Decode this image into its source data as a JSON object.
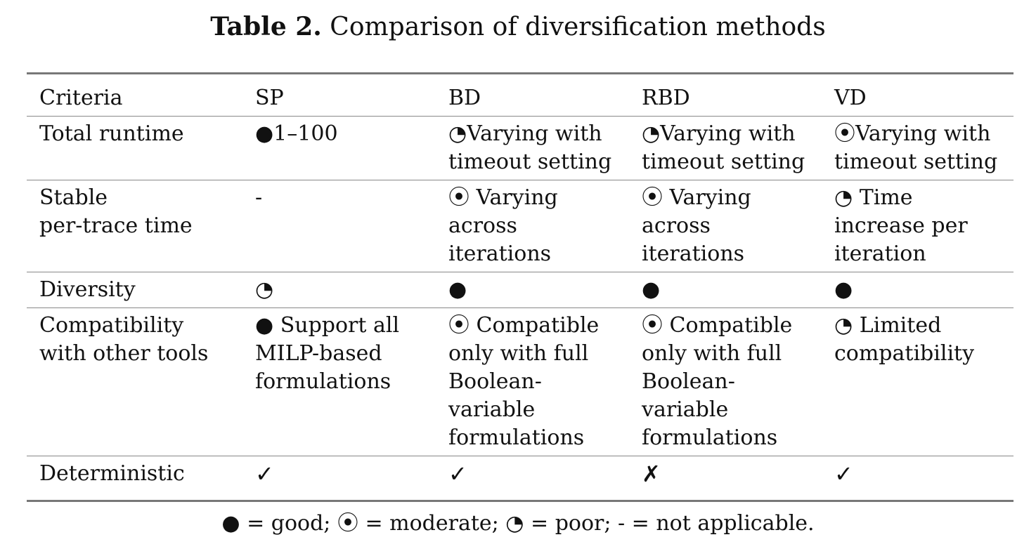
{
  "caption": {
    "label": "Table 2.",
    "text": " Comparison of diversification methods"
  },
  "header": {
    "criteria": "Criteria",
    "sp": "SP",
    "bd": "BD",
    "rbd": "RBD",
    "vd": "VD"
  },
  "rows": [
    {
      "criterion": "Total runtime",
      "sp": "●1–100",
      "bd": "◔Varying with\ntimeout setting",
      "rbd": "◔Varying with\ntimeout setting",
      "vd": "⦿Varying with\ntimeout setting"
    },
    {
      "criterion": "Stable\nper-trace time",
      "sp": "-",
      "bd": "⦿ Varying\nacross\niterations",
      "rbd": "⦿ Varying\nacross\niterations",
      "vd": "◔ Time\nincrease per\niteration"
    },
    {
      "criterion": "Diversity",
      "sp": "◔",
      "bd": "●",
      "rbd": "●",
      "vd": "●"
    },
    {
      "criterion": "Compatibility\nwith other tools",
      "sp": "● Support all\nMILP-based\nformulations",
      "bd": "⦿ Compatible\nonly with full\nBoolean-\nvariable\nformulations",
      "rbd": "⦿ Compatible\nonly with full\nBoolean-\nvariable\nformulations",
      "vd": "◔ Limited\ncompatibility"
    },
    {
      "criterion": "Deterministic",
      "sp": "✓",
      "bd": "✓",
      "rbd": "✗",
      "vd": "✓"
    }
  ],
  "legend": "● = good; ⦿ = moderate; ◔ = poor; - = not applicable."
}
